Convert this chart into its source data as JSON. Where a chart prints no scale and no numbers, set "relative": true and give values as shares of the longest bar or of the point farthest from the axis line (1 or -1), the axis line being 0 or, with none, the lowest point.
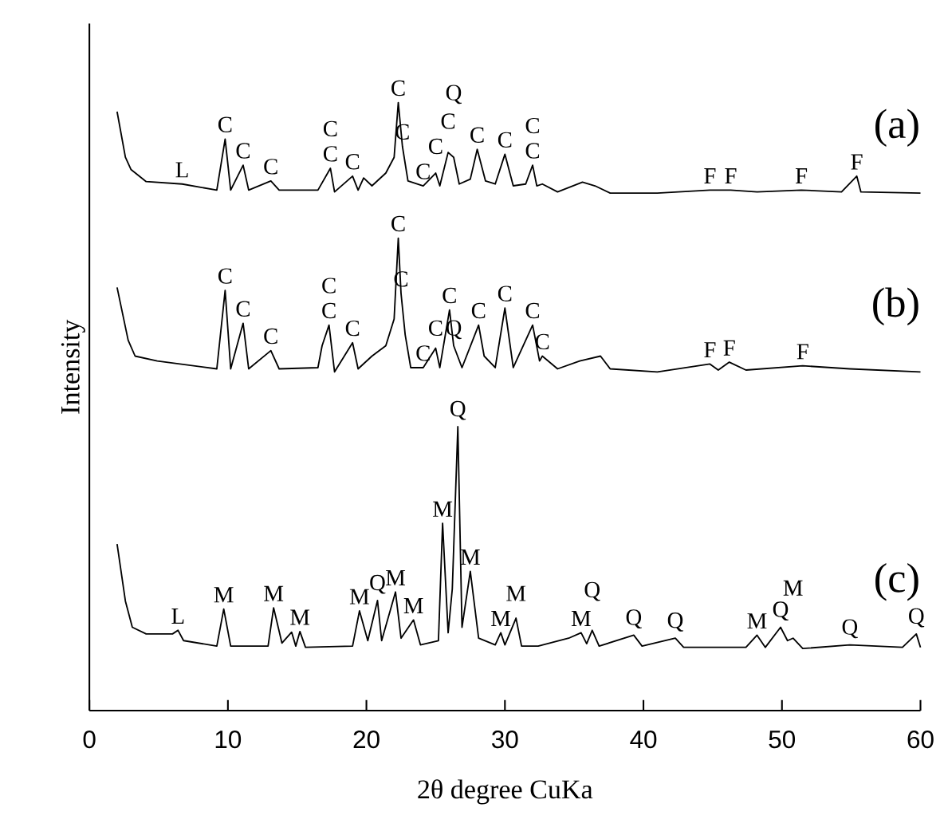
{
  "chart_data": {
    "type": "line",
    "relative": true,
    "xlabel": "2θ degree CuKa",
    "ylabel": "Intensity",
    "xlim": [
      0,
      60
    ],
    "xticks": [
      0,
      10,
      20,
      30,
      40,
      50,
      60
    ],
    "series": [
      {
        "name": "(a)",
        "color": "#000000",
        "x": [
          2.0,
          2.6,
          3.0,
          4.1,
          6.7,
          9.2,
          9.8,
          10.2,
          11.1,
          11.5,
          13.1,
          13.7,
          16.5,
          17.4,
          17.7,
          19.0,
          19.4,
          19.8,
          20.4,
          21.4,
          22.0,
          22.3,
          22.6,
          23.0,
          24.1,
          25.0,
          25.3,
          25.9,
          26.3,
          26.7,
          27.5,
          28.0,
          28.6,
          29.3,
          30.0,
          30.6,
          31.5,
          32.0,
          32.3,
          32.7,
          33.8,
          35.6,
          36.5,
          37.6,
          41.0,
          44.8,
          46.3,
          48.2,
          51.4,
          54.3,
          55.4,
          55.7,
          60.0
        ],
        "values": [
          0.985,
          0.91,
          0.89,
          0.87,
          0.866,
          0.856,
          0.94,
          0.856,
          0.897,
          0.856,
          0.871,
          0.856,
          0.856,
          0.892,
          0.853,
          0.879,
          0.856,
          0.876,
          0.863,
          0.884,
          0.91,
          1.0,
          0.928,
          0.871,
          0.863,
          0.884,
          0.863,
          0.918,
          0.91,
          0.866,
          0.874,
          0.923,
          0.871,
          0.866,
          0.915,
          0.863,
          0.866,
          0.897,
          0.863,
          0.866,
          0.853,
          0.869,
          0.863,
          0.851,
          0.851,
          0.856,
          0.856,
          0.853,
          0.856,
          0.853,
          0.879,
          0.853,
          0.851
        ]
      },
      {
        "name": "(b)",
        "color": "#000000",
        "x": [
          2.0,
          2.8,
          3.3,
          4.9,
          9.2,
          9.8,
          10.2,
          11.1,
          11.5,
          13.1,
          13.7,
          16.5,
          16.8,
          17.3,
          17.7,
          19.0,
          19.4,
          20.4,
          21.4,
          22.0,
          22.3,
          22.5,
          22.8,
          23.2,
          24.1,
          25.0,
          25.3,
          26.0,
          26.3,
          26.9,
          28.1,
          28.5,
          29.3,
          30.0,
          30.6,
          32.0,
          32.5,
          32.7,
          33.8,
          35.4,
          36.9,
          37.6,
          41.0,
          44.8,
          45.4,
          46.2,
          47.4,
          51.5,
          54.9,
          60.0
        ],
        "values": [
          0.696,
          0.609,
          0.583,
          0.575,
          0.562,
          0.691,
          0.562,
          0.637,
          0.562,
          0.592,
          0.562,
          0.564,
          0.6,
          0.634,
          0.557,
          0.605,
          0.562,
          0.583,
          0.6,
          0.644,
          0.777,
          0.686,
          0.618,
          0.564,
          0.564,
          0.596,
          0.564,
          0.659,
          0.6,
          0.564,
          0.634,
          0.583,
          0.564,
          0.662,
          0.564,
          0.634,
          0.575,
          0.583,
          0.562,
          0.575,
          0.583,
          0.562,
          0.557,
          0.57,
          0.56,
          0.573,
          0.56,
          0.567,
          0.562,
          0.557
        ]
      },
      {
        "name": "(c)",
        "color": "#000000",
        "x": [
          2.0,
          2.6,
          3.1,
          4.1,
          6.0,
          6.4,
          6.8,
          9.2,
          9.7,
          10.2,
          12.9,
          13.3,
          13.9,
          14.6,
          14.9,
          15.2,
          15.6,
          19.0,
          19.5,
          20.1,
          20.8,
          21.1,
          22.1,
          22.5,
          23.4,
          23.9,
          25.2,
          25.5,
          25.9,
          26.2,
          26.6,
          26.9,
          27.5,
          28.1,
          29.3,
          29.7,
          30.0,
          30.8,
          31.2,
          32.4,
          34.6,
          35.5,
          35.9,
          36.3,
          36.8,
          39.3,
          39.9,
          42.3,
          42.9,
          47.4,
          48.2,
          48.8,
          49.9,
          50.4,
          50.8,
          51.5,
          54.9,
          58.7,
          59.7,
          60.0
        ],
        "values": [
          0.274,
          0.18,
          0.137,
          0.126,
          0.126,
          0.132,
          0.115,
          0.106,
          0.167,
          0.106,
          0.106,
          0.169,
          0.111,
          0.129,
          0.106,
          0.13,
          0.104,
          0.106,
          0.164,
          0.115,
          0.181,
          0.115,
          0.195,
          0.119,
          0.149,
          0.108,
          0.115,
          0.308,
          0.128,
          0.2,
          0.467,
          0.137,
          0.229,
          0.119,
          0.108,
          0.128,
          0.108,
          0.152,
          0.106,
          0.106,
          0.119,
          0.128,
          0.11,
          0.132,
          0.106,
          0.124,
          0.106,
          0.119,
          0.104,
          0.104,
          0.124,
          0.104,
          0.137,
          0.115,
          0.119,
          0.102,
          0.108,
          0.104,
          0.126,
          0.104
        ]
      }
    ],
    "annotations": [
      {
        "text": "L",
        "x": 6.7,
        "y": 0.866
      },
      {
        "text": "C",
        "x": 9.8,
        "y": 0.94
      },
      {
        "text": "C",
        "x": 11.1,
        "y": 0.897
      },
      {
        "text": "C",
        "x": 13.1,
        "y": 0.871
      },
      {
        "text": "C",
        "x": 17.4,
        "y": 0.892
      },
      {
        "text": "C",
        "x": 17.4,
        "y": 0.892
      },
      {
        "text": "C",
        "x": 19.0,
        "y": 0.879
      },
      {
        "text": "C",
        "x": 22.3,
        "y": 1.0
      },
      {
        "text": "C",
        "x": 22.6,
        "y": 0.928
      },
      {
        "text": "C",
        "x": 24.1,
        "y": 0.863
      },
      {
        "text": "C",
        "x": 25.0,
        "y": 0.884
      },
      {
        "text": "C",
        "x": 25.9,
        "y": 0.918
      },
      {
        "text": "Q",
        "x": 26.3,
        "y": 0.91
      },
      {
        "text": "C",
        "x": 28.0,
        "y": 0.923
      },
      {
        "text": "C",
        "x": 30.0,
        "y": 0.915
      },
      {
        "text": "C",
        "x": 32.0,
        "y": 0.897
      },
      {
        "text": "C",
        "x": 32.0,
        "y": 0.897
      },
      {
        "text": "F",
        "x": 44.8,
        "y": 0.856
      },
      {
        "text": "F",
        "x": 46.3,
        "y": 0.856
      },
      {
        "text": "F",
        "x": 51.4,
        "y": 0.856
      },
      {
        "text": "F",
        "x": 55.4,
        "y": 0.879
      },
      {
        "text": "C",
        "x": 9.8,
        "y": 0.691
      },
      {
        "text": "C",
        "x": 11.1,
        "y": 0.637
      },
      {
        "text": "C",
        "x": 13.1,
        "y": 0.592
      },
      {
        "text": "C",
        "x": 17.3,
        "y": 0.634
      },
      {
        "text": "C",
        "x": 17.3,
        "y": 0.634
      },
      {
        "text": "C",
        "x": 19.0,
        "y": 0.605
      },
      {
        "text": "C",
        "x": 22.3,
        "y": 0.777
      },
      {
        "text": "C",
        "x": 22.5,
        "y": 0.686
      },
      {
        "text": "C",
        "x": 24.1,
        "y": 0.564
      },
      {
        "text": "C",
        "x": 25.0,
        "y": 0.596
      },
      {
        "text": "C",
        "x": 26.0,
        "y": 0.659
      },
      {
        "text": "Q",
        "x": 26.3,
        "y": 0.6
      },
      {
        "text": "C",
        "x": 28.1,
        "y": 0.634
      },
      {
        "text": "C",
        "x": 30.0,
        "y": 0.662
      },
      {
        "text": "C",
        "x": 32.0,
        "y": 0.634
      },
      {
        "text": "C",
        "x": 32.7,
        "y": 0.583
      },
      {
        "text": "F",
        "x": 44.8,
        "y": 0.57
      },
      {
        "text": "F",
        "x": 46.2,
        "y": 0.573
      },
      {
        "text": "F",
        "x": 51.5,
        "y": 0.567
      },
      {
        "text": "Q",
        "x": 26.6,
        "y": 0.467
      },
      {
        "text": "M",
        "x": 25.5,
        "y": 0.308
      },
      {
        "text": "M",
        "x": 27.5,
        "y": 0.229
      },
      {
        "text": "L",
        "x": 6.4,
        "y": 0.132
      },
      {
        "text": "M",
        "x": 9.7,
        "y": 0.167
      },
      {
        "text": "M",
        "x": 13.3,
        "y": 0.169
      },
      {
        "text": "M",
        "x": 15.2,
        "y": 0.13
      },
      {
        "text": "M",
        "x": 19.5,
        "y": 0.164
      },
      {
        "text": "Q",
        "x": 20.8,
        "y": 0.181
      },
      {
        "text": "M",
        "x": 22.1,
        "y": 0.195
      },
      {
        "text": "M",
        "x": 23.4,
        "y": 0.149
      },
      {
        "text": "M",
        "x": 29.7,
        "y": 0.128
      },
      {
        "text": "M",
        "x": 30.8,
        "y": 0.152
      },
      {
        "text": "M",
        "x": 35.5,
        "y": 0.128
      },
      {
        "text": "Q",
        "x": 36.3,
        "y": 0.132
      },
      {
        "text": "Q",
        "x": 39.3,
        "y": 0.124
      },
      {
        "text": "Q",
        "x": 42.3,
        "y": 0.119
      },
      {
        "text": "M",
        "x": 48.2,
        "y": 0.124
      },
      {
        "text": "Q",
        "x": 49.9,
        "y": 0.137
      },
      {
        "text": "M",
        "x": 50.8,
        "y": 0.119
      },
      {
        "text": "Q",
        "x": 54.9,
        "y": 0.108
      },
      {
        "text": "Q",
        "x": 59.7,
        "y": 0.126
      }
    ]
  }
}
